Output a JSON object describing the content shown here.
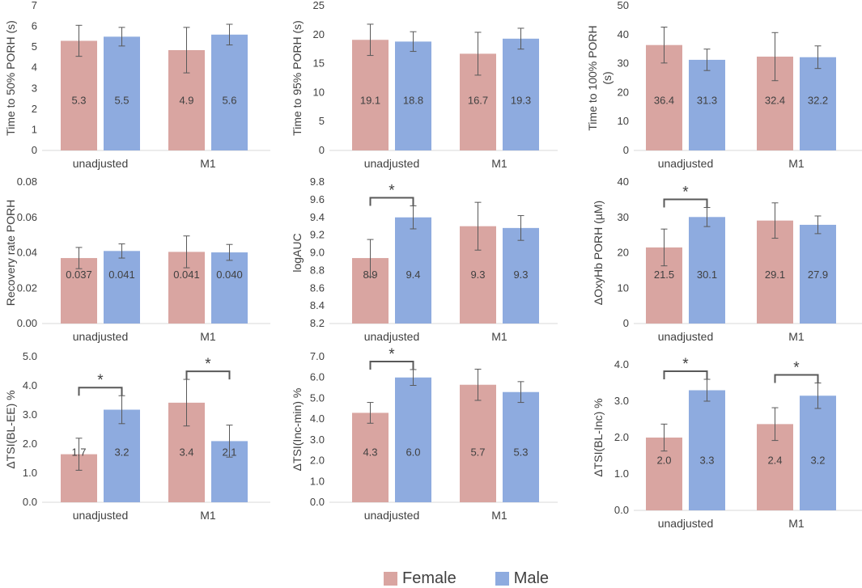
{
  "legend": {
    "female_label": "Female",
    "male_label": "Male",
    "female_color": "#d9a5a1",
    "male_color": "#8eabdf"
  },
  "chart_data": [
    {
      "type": "bar",
      "ylabel": [
        "Time to 50% PORH (s)"
      ],
      "categories": [
        "unadjusted",
        "M1"
      ],
      "ylim": [
        0,
        7
      ],
      "ticks": [
        "0",
        "1",
        "2",
        "3",
        "4",
        "5",
        "6",
        "7"
      ],
      "decimals": 1,
      "series": [
        {
          "name": "Female",
          "values": [
            5.3,
            4.85
          ],
          "labels": [
            "5.3",
            "4.9"
          ],
          "err": [
            0.75,
            1.1
          ]
        },
        {
          "name": "Male",
          "values": [
            5.5,
            5.6
          ],
          "labels": [
            "5.5",
            "5.6"
          ],
          "err": [
            0.45,
            0.5
          ]
        }
      ],
      "significance": []
    },
    {
      "type": "bar",
      "ylabel": [
        "Time to 95% PORH (s)"
      ],
      "categories": [
        "unadjusted",
        "M1"
      ],
      "ylim": [
        0,
        25
      ],
      "ticks": [
        "0",
        "5",
        "10",
        "15",
        "20",
        "25"
      ],
      "decimals": 1,
      "series": [
        {
          "name": "Female",
          "values": [
            19.1,
            16.7
          ],
          "labels": [
            "19.1",
            "16.7"
          ],
          "err": [
            2.7,
            3.7
          ]
        },
        {
          "name": "Male",
          "values": [
            18.8,
            19.3
          ],
          "labels": [
            "18.8",
            "19.3"
          ],
          "err": [
            1.7,
            1.8
          ]
        }
      ],
      "significance": []
    },
    {
      "type": "bar",
      "ylabel": [
        "Time to 100% PORH",
        "(s)"
      ],
      "categories": [
        "unadjusted",
        "M1"
      ],
      "ylim": [
        0,
        50
      ],
      "ticks": [
        "0",
        "10",
        "20",
        "30",
        "40",
        "50"
      ],
      "decimals": 1,
      "series": [
        {
          "name": "Female",
          "values": [
            36.4,
            32.4
          ],
          "labels": [
            "36.4",
            "32.4"
          ],
          "err": [
            6.2,
            8.3
          ]
        },
        {
          "name": "Male",
          "values": [
            31.3,
            32.2
          ],
          "labels": [
            "31.3",
            "32.2"
          ],
          "err": [
            3.7,
            3.9
          ]
        }
      ],
      "significance": []
    },
    {
      "type": "bar",
      "ylabel": [
        "Recovery rate PORH"
      ],
      "categories": [
        "unadjusted",
        "M1"
      ],
      "ylim": [
        0,
        0.08
      ],
      "ticks": [
        "0.00",
        "0.02",
        "0.04",
        "0.06",
        "0.08"
      ],
      "decimals": 3,
      "series": [
        {
          "name": "Female",
          "values": [
            0.037,
            0.0405
          ],
          "labels": [
            "0.037",
            "0.041"
          ],
          "err": [
            0.006,
            0.009
          ]
        },
        {
          "name": "Male",
          "values": [
            0.041,
            0.0402
          ],
          "labels": [
            "0.041",
            "0.040"
          ],
          "err": [
            0.004,
            0.0045
          ]
        }
      ],
      "significance": []
    },
    {
      "type": "bar",
      "ylabel": [
        "logAUC"
      ],
      "categories": [
        "unadjusted",
        "M1"
      ],
      "ylim": [
        8.2,
        9.8
      ],
      "ticks": [
        "8.2",
        "8.4",
        "8.6",
        "8.8",
        "9.0",
        "9.2",
        "9.4",
        "9.6",
        "9.8"
      ],
      "decimals": 1,
      "series": [
        {
          "name": "Female",
          "values": [
            8.94,
            9.3
          ],
          "labels": [
            "8.9",
            "9.3"
          ],
          "err": [
            0.21,
            0.27
          ]
        },
        {
          "name": "Male",
          "values": [
            9.4,
            9.28
          ],
          "labels": [
            "9.4",
            "9.3"
          ],
          "err": [
            0.13,
            0.14
          ]
        }
      ],
      "significance": [
        {
          "category": 0,
          "label": "*"
        }
      ]
    },
    {
      "type": "bar",
      "ylabel": [
        "ΔOxyHb PORH (µM)"
      ],
      "categories": [
        "unadjusted",
        "M1"
      ],
      "ylim": [
        0,
        40
      ],
      "ticks": [
        "0",
        "10",
        "20",
        "30",
        "40"
      ],
      "decimals": 1,
      "series": [
        {
          "name": "Female",
          "values": [
            21.5,
            29.1
          ],
          "labels": [
            "21.5",
            "29.1"
          ],
          "err": [
            5.2,
            5.0
          ]
        },
        {
          "name": "Male",
          "values": [
            30.1,
            27.9
          ],
          "labels": [
            "30.1",
            "27.9"
          ],
          "err": [
            2.7,
            2.5
          ]
        }
      ],
      "significance": [
        {
          "category": 0,
          "label": "*"
        }
      ]
    },
    {
      "type": "bar",
      "ylabel": [
        "ΔTSI(BL-EE) %"
      ],
      "categories": [
        "unadjusted",
        "M1"
      ],
      "ylim": [
        0,
        5
      ],
      "ticks": [
        "0.0",
        "1.0",
        "2.0",
        "3.0",
        "4.0",
        "5.0"
      ],
      "decimals": 1,
      "series": [
        {
          "name": "Female",
          "values": [
            1.65,
            3.42
          ],
          "labels": [
            "1.7",
            "3.4"
          ],
          "err": [
            0.55,
            0.8
          ]
        },
        {
          "name": "Male",
          "values": [
            3.18,
            2.1
          ],
          "labels": [
            "3.2",
            "2.1"
          ],
          "err": [
            0.48,
            0.55
          ]
        }
      ],
      "significance": [
        {
          "category": 0,
          "label": "*"
        },
        {
          "category": 1,
          "label": "*"
        }
      ]
    },
    {
      "type": "bar",
      "ylabel": [
        "ΔTSI(Inc-min) %"
      ],
      "categories": [
        "unadjusted",
        "M1"
      ],
      "ylim": [
        0,
        7
      ],
      "ticks": [
        "0.0",
        "1.0",
        "2.0",
        "3.0",
        "4.0",
        "5.0",
        "6.0",
        "7.0"
      ],
      "decimals": 1,
      "series": [
        {
          "name": "Female",
          "values": [
            4.3,
            5.65
          ],
          "labels": [
            "4.3",
            "5.7"
          ],
          "err": [
            0.5,
            0.75
          ]
        },
        {
          "name": "Male",
          "values": [
            6.0,
            5.3
          ],
          "labels": [
            "6.0",
            "5.3"
          ],
          "err": [
            0.38,
            0.5
          ]
        }
      ],
      "significance": [
        {
          "category": 0,
          "label": "*"
        }
      ]
    },
    {
      "type": "bar",
      "ylabel": [
        "ΔTSI(BL-Inc) %"
      ],
      "categories": [
        "unadjusted",
        "M1"
      ],
      "ylim": [
        0,
        4
      ],
      "ticks": [
        "0.0",
        "1.0",
        "2.0",
        "3.0",
        "4.0"
      ],
      "decimals": 1,
      "series": [
        {
          "name": "Female",
          "values": [
            2.0,
            2.37
          ],
          "labels": [
            "2.0",
            "2.4"
          ],
          "err": [
            0.37,
            0.45
          ]
        },
        {
          "name": "Male",
          "values": [
            3.3,
            3.15
          ],
          "labels": [
            "3.3",
            "3.2"
          ],
          "err": [
            0.3,
            0.35
          ]
        }
      ],
      "significance": [
        {
          "category": 0,
          "label": "*"
        },
        {
          "category": 1,
          "label": "*"
        }
      ]
    }
  ]
}
